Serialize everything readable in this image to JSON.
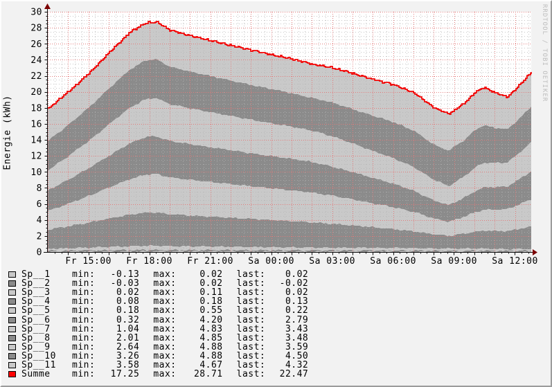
{
  "watermark": "RRDTOOL / TOBI OETIKER",
  "chart_data": {
    "type": "area",
    "title": "",
    "ylabel": "Energie (kWh)",
    "xlabel": "",
    "ylim": [
      0,
      30
    ],
    "y_major_step": 2,
    "y_minor_step": 0.5,
    "x_range_hours": [
      13,
      36.8
    ],
    "x_hour_grid_step": 1,
    "x_minor_grid_step": 0.3333,
    "x_labels": [
      {
        "t": 15,
        "label": "Fr 15:00"
      },
      {
        "t": 18,
        "label": "Fr 18:00"
      },
      {
        "t": 21,
        "label": "Fr 21:00"
      },
      {
        "t": 24,
        "label": "Sa 00:00"
      },
      {
        "t": 27,
        "label": "Sa 03:00"
      },
      {
        "t": 30,
        "label": "Sa 06:00"
      },
      {
        "t": 33,
        "label": "Sa 09:00"
      },
      {
        "t": 36,
        "label": "Sa 12:00"
      }
    ],
    "colors": {
      "background": "#f2f2f2",
      "plot_background": "#ffffff",
      "area_light": "#c9c9c9",
      "area_dark": "#8b8b8b",
      "summe_line": "#f20000",
      "grid_minor": "#b4b4b4",
      "grid_major_red": "#e37a7a",
      "axis": "#0a0a0a",
      "arrow": "#7c0000",
      "watermark": "#bdbdbd"
    },
    "summe_series": [
      [
        0,
        17.9
      ],
      [
        1,
        20.0
      ],
      [
        2,
        22.3
      ],
      [
        3,
        24.9
      ],
      [
        4,
        27.4
      ],
      [
        4.75,
        28.55
      ],
      [
        5,
        28.65
      ],
      [
        5.35,
        28.71
      ],
      [
        6,
        27.7
      ],
      [
        7,
        27.0
      ],
      [
        8,
        26.4
      ],
      [
        9,
        25.8
      ],
      [
        10,
        25.2
      ],
      [
        11,
        24.65
      ],
      [
        12,
        24.1
      ],
      [
        13,
        23.45
      ],
      [
        14,
        23.0
      ],
      [
        15,
        22.3
      ],
      [
        16,
        21.55
      ],
      [
        17,
        20.9
      ],
      [
        18,
        19.9
      ],
      [
        19,
        18.0
      ],
      [
        19.73,
        17.25
      ],
      [
        20.5,
        18.6
      ],
      [
        21,
        19.9
      ],
      [
        21.45,
        20.55
      ],
      [
        22,
        19.9
      ],
      [
        22.6,
        19.35
      ],
      [
        23,
        20.3
      ],
      [
        23.8,
        22.47
      ]
    ],
    "layer_names": [
      "Sp__1",
      "Sp__2",
      "Sp__3",
      "Sp__4",
      "Sp__5",
      "Sp__6",
      "Sp__7",
      "Sp__8",
      "Sp__9",
      "Sp__10",
      "Sp__11"
    ],
    "layer_fill": [
      "light",
      "dark",
      "light",
      "dark",
      "light",
      "dark",
      "light",
      "dark",
      "light",
      "dark",
      "light"
    ],
    "layer_anchors": [
      {
        "t": 0,
        "values": [
          0.02,
          0.01,
          0.04,
          0.1,
          0.22,
          2.4,
          2.3,
          2.6,
          2.45,
          3.7,
          4.0
        ]
      },
      {
        "t": 5.1,
        "values": [
          0.02,
          0.01,
          0.08,
          0.16,
          0.5,
          4.18,
          4.8,
          4.75,
          4.75,
          4.85,
          4.65
        ]
      },
      {
        "t": 13,
        "values": [
          0.02,
          0.01,
          0.06,
          0.14,
          0.35,
          3.3,
          3.9,
          4.0,
          4.1,
          4.3,
          4.4
        ]
      },
      {
        "t": 19.73,
        "values": [
          0.02,
          0.01,
          0.03,
          0.1,
          0.25,
          1.55,
          1.7,
          2.0,
          2.3,
          4.3,
          4.45
        ]
      },
      {
        "t": 23.8,
        "values": [
          0.02,
          0.0,
          0.02,
          0.13,
          0.22,
          2.79,
          3.43,
          3.48,
          3.59,
          4.5,
          4.32
        ]
      }
    ],
    "legend": {
      "keys": {
        "min": "min:",
        "max": "max:",
        "last": "last:"
      },
      "rows": [
        {
          "name": "Sp__1",
          "swatch": "#c9c9c9",
          "min": "-0.13",
          "max": "0.02",
          "last": "0.02"
        },
        {
          "name": "Sp__2",
          "swatch": "#8b8b8b",
          "min": "-0.03",
          "max": "0.02",
          "last": "-0.02"
        },
        {
          "name": "Sp__3",
          "swatch": "#c9c9c9",
          "min": "0.02",
          "max": "0.11",
          "last": "0.02"
        },
        {
          "name": "Sp__4",
          "swatch": "#8b8b8b",
          "min": "0.08",
          "max": "0.18",
          "last": "0.13"
        },
        {
          "name": "Sp__5",
          "swatch": "#c9c9c9",
          "min": "0.18",
          "max": "0.55",
          "last": "0.22"
        },
        {
          "name": "Sp__6",
          "swatch": "#8b8b8b",
          "min": "0.32",
          "max": "4.20",
          "last": "2.79"
        },
        {
          "name": "Sp__7",
          "swatch": "#c9c9c9",
          "min": "1.04",
          "max": "4.83",
          "last": "3.43"
        },
        {
          "name": "Sp__8",
          "swatch": "#8b8b8b",
          "min": "2.01",
          "max": "4.85",
          "last": "3.48"
        },
        {
          "name": "Sp__9",
          "swatch": "#c9c9c9",
          "min": "2.64",
          "max": "4.88",
          "last": "3.59"
        },
        {
          "name": "Sp__10",
          "swatch": "#8b8b8b",
          "min": "3.26",
          "max": "4.88",
          "last": "4.50"
        },
        {
          "name": "Sp__11",
          "swatch": "#c9c9c9",
          "min": "3.58",
          "max": "4.67",
          "last": "4.32"
        },
        {
          "name": "Summe",
          "swatch": "#ff0000",
          "min": "17.25",
          "max": "28.71",
          "last": "22.47"
        }
      ]
    }
  }
}
